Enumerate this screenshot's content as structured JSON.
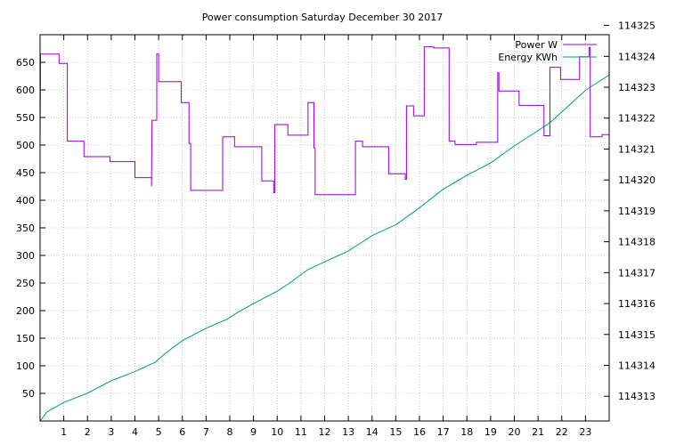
{
  "chart_data": {
    "type": "line",
    "title": "Power consumption Saturday December 30 2017",
    "xlabel": "",
    "ylabel": "",
    "y2label": "",
    "xlim": [
      0,
      24
    ],
    "ylim": [
      0,
      700
    ],
    "y2lim": [
      114312.2,
      114324.7
    ],
    "x_ticks": [
      1,
      2,
      3,
      4,
      5,
      6,
      7,
      8,
      9,
      10,
      11,
      12,
      13,
      14,
      15,
      16,
      17,
      18,
      19,
      20,
      21,
      22,
      23
    ],
    "y_ticks": [
      50,
      100,
      150,
      200,
      250,
      300,
      350,
      400,
      450,
      500,
      550,
      600,
      650
    ],
    "y2_ticks": [
      114313,
      114314,
      114315,
      114316,
      114317,
      114318,
      114319,
      114320,
      114321,
      114322,
      114323,
      114324,
      114325
    ],
    "grid": true,
    "legend_position": "top-right",
    "series": [
      {
        "name": "Power W",
        "axis": "y",
        "color": "#9400d3",
        "style": "step",
        "points": [
          [
            0.0,
            512
          ],
          [
            0.02,
            665
          ],
          [
            0.8,
            665
          ],
          [
            0.8,
            648
          ],
          [
            1.15,
            648
          ],
          [
            1.15,
            507
          ],
          [
            1.85,
            507
          ],
          [
            1.85,
            479
          ],
          [
            2.95,
            479
          ],
          [
            2.95,
            470
          ],
          [
            4.0,
            470
          ],
          [
            4.0,
            441
          ],
          [
            4.7,
            441
          ],
          [
            4.7,
            425
          ],
          [
            4.72,
            545
          ],
          [
            4.92,
            545
          ],
          [
            4.92,
            665
          ],
          [
            5.0,
            665
          ],
          [
            5.0,
            615
          ],
          [
            5.95,
            615
          ],
          [
            5.95,
            577
          ],
          [
            6.28,
            577
          ],
          [
            6.28,
            503
          ],
          [
            6.35,
            503
          ],
          [
            6.35,
            418
          ],
          [
            7.7,
            418
          ],
          [
            7.7,
            515
          ],
          [
            8.2,
            515
          ],
          [
            8.2,
            497
          ],
          [
            9.35,
            497
          ],
          [
            9.35,
            435
          ],
          [
            9.85,
            435
          ],
          [
            9.85,
            414
          ],
          [
            9.9,
            414
          ],
          [
            9.9,
            537
          ],
          [
            10.45,
            537
          ],
          [
            10.45,
            518
          ],
          [
            11.3,
            518
          ],
          [
            11.3,
            577
          ],
          [
            11.55,
            577
          ],
          [
            11.55,
            495
          ],
          [
            11.6,
            495
          ],
          [
            11.6,
            410
          ],
          [
            13.3,
            410
          ],
          [
            13.3,
            507
          ],
          [
            13.6,
            507
          ],
          [
            13.6,
            497
          ],
          [
            14.7,
            497
          ],
          [
            14.7,
            448
          ],
          [
            15.4,
            448
          ],
          [
            15.4,
            438
          ],
          [
            15.45,
            438
          ],
          [
            15.45,
            571
          ],
          [
            15.75,
            571
          ],
          [
            15.75,
            553
          ],
          [
            16.2,
            553
          ],
          [
            16.2,
            678
          ],
          [
            16.6,
            678
          ],
          [
            16.6,
            676
          ],
          [
            17.25,
            676
          ],
          [
            17.25,
            507
          ],
          [
            17.5,
            507
          ],
          [
            17.5,
            501
          ],
          [
            18.4,
            501
          ],
          [
            18.4,
            505
          ],
          [
            19.3,
            505
          ],
          [
            19.3,
            631
          ],
          [
            19.35,
            631
          ],
          [
            19.35,
            598
          ],
          [
            20.2,
            598
          ],
          [
            20.2,
            572
          ],
          [
            21.25,
            572
          ],
          [
            21.25,
            517
          ],
          [
            21.5,
            517
          ],
          [
            21.5,
            641
          ],
          [
            21.95,
            641
          ],
          [
            21.95,
            619
          ],
          [
            22.75,
            619
          ],
          [
            22.75,
            660
          ],
          [
            23.15,
            660
          ],
          [
            23.15,
            677
          ],
          [
            23.2,
            677
          ],
          [
            23.2,
            515
          ],
          [
            23.7,
            515
          ],
          [
            23.7,
            519
          ],
          [
            24.0,
            519
          ]
        ]
      },
      {
        "name": "Energy KWh",
        "axis": "y2",
        "color": "#009e73",
        "style": "line",
        "points": [
          [
            0.0,
            114312.2
          ],
          [
            0.3,
            114312.5
          ],
          [
            1.0,
            114312.8
          ],
          [
            2.0,
            114313.1
          ],
          [
            3.0,
            114313.5
          ],
          [
            4.0,
            114313.8
          ],
          [
            4.85,
            114314.1
          ],
          [
            5.3,
            114314.4
          ],
          [
            6.0,
            114314.8
          ],
          [
            7.0,
            114315.2
          ],
          [
            7.9,
            114315.5
          ],
          [
            8.3,
            114315.7
          ],
          [
            9.0,
            114316.0
          ],
          [
            10.0,
            114316.4
          ],
          [
            10.5,
            114316.65
          ],
          [
            11.3,
            114317.1
          ],
          [
            12.0,
            114317.35
          ],
          [
            13.0,
            114317.7
          ],
          [
            13.5,
            114317.95
          ],
          [
            14.0,
            114318.2
          ],
          [
            15.0,
            114318.55
          ],
          [
            16.0,
            114319.1
          ],
          [
            17.0,
            114319.7
          ],
          [
            18.0,
            114320.15
          ],
          [
            19.0,
            114320.55
          ],
          [
            20.0,
            114321.1
          ],
          [
            21.0,
            114321.6
          ],
          [
            21.5,
            114321.85
          ],
          [
            22.0,
            114322.2
          ],
          [
            23.0,
            114322.9
          ],
          [
            24.0,
            114323.4
          ]
        ]
      }
    ]
  }
}
